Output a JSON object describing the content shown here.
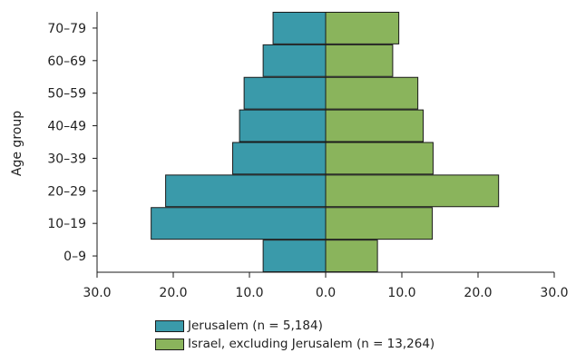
{
  "chart_data": {
    "type": "bar",
    "orientation": "horizontal-pyramid",
    "ylabel": "Age group",
    "categories": [
      "0–9",
      "10–19",
      "20–29",
      "30–39",
      "40–49",
      "50–59",
      "60–69",
      "70–79"
    ],
    "series": [
      {
        "name": "Jerusalem (n = 5,184)",
        "side": "left",
        "color": "#3a9aaa",
        "values": [
          8.2,
          22.9,
          21.0,
          12.2,
          11.3,
          10.7,
          8.2,
          6.9
        ]
      },
      {
        "name": "Israel, excluding Jerusalem (n = 13,264)",
        "side": "right",
        "color": "#8ab45c",
        "values": [
          6.8,
          14.0,
          22.7,
          14.1,
          12.8,
          12.1,
          8.8,
          9.6
        ]
      }
    ],
    "xlim": [
      -30,
      30
    ],
    "x_ticks": [
      {
        "value": -30,
        "label": "30.0"
      },
      {
        "value": -20,
        "label": "20.0"
      },
      {
        "value": -10,
        "label": "10.0"
      },
      {
        "value": 0,
        "label": "0.0"
      },
      {
        "value": 10,
        "label": "10.0"
      },
      {
        "value": 20,
        "label": "20.0"
      },
      {
        "value": 30,
        "label": "30.0"
      }
    ],
    "grid": false,
    "legend_position": "bottom"
  }
}
